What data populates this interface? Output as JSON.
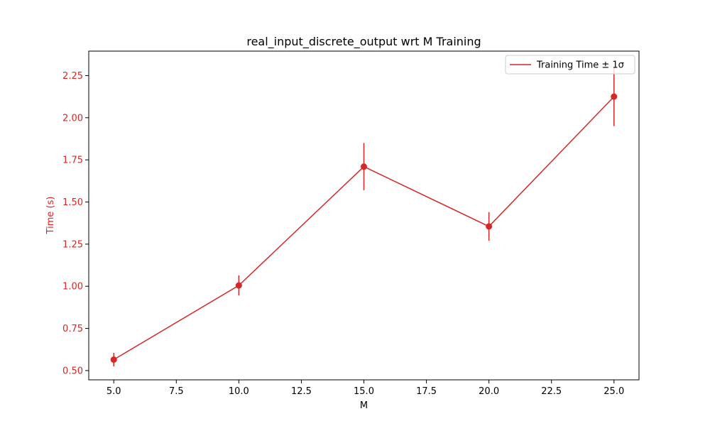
{
  "chart_data": {
    "type": "line",
    "title": "real_input_discrete_output wrt M Training",
    "xlabel": "M",
    "ylabel": "Time (s)",
    "xlim": [
      4.0,
      26.0
    ],
    "ylim": [
      0.445,
      2.395
    ],
    "x_ticks": [
      5.0,
      7.5,
      10.0,
      12.5,
      15.0,
      17.5,
      20.0,
      22.5,
      25.0
    ],
    "x_tick_labels": [
      "5.0",
      "7.5",
      "10.0",
      "12.5",
      "15.0",
      "17.5",
      "20.0",
      "22.5",
      "25.0"
    ],
    "y_ticks": [
      0.5,
      0.75,
      1.0,
      1.25,
      1.5,
      1.75,
      2.0,
      2.25
    ],
    "y_tick_labels": [
      "0.50",
      "0.75",
      "1.00",
      "1.25",
      "1.50",
      "1.75",
      "2.00",
      "2.25"
    ],
    "grid": false,
    "legend_position": "top-right",
    "series": [
      {
        "name": "Training Time ± 1σ",
        "color": "#d62728",
        "marker": "circle",
        "x": [
          5,
          10,
          15,
          20,
          25
        ],
        "y": [
          0.565,
          1.005,
          1.71,
          1.355,
          2.125
        ],
        "error": [
          0.04,
          0.06,
          0.14,
          0.085,
          0.175
        ]
      }
    ],
    "ylabel_color": "#d62728",
    "ytick_color": "#d62728"
  }
}
